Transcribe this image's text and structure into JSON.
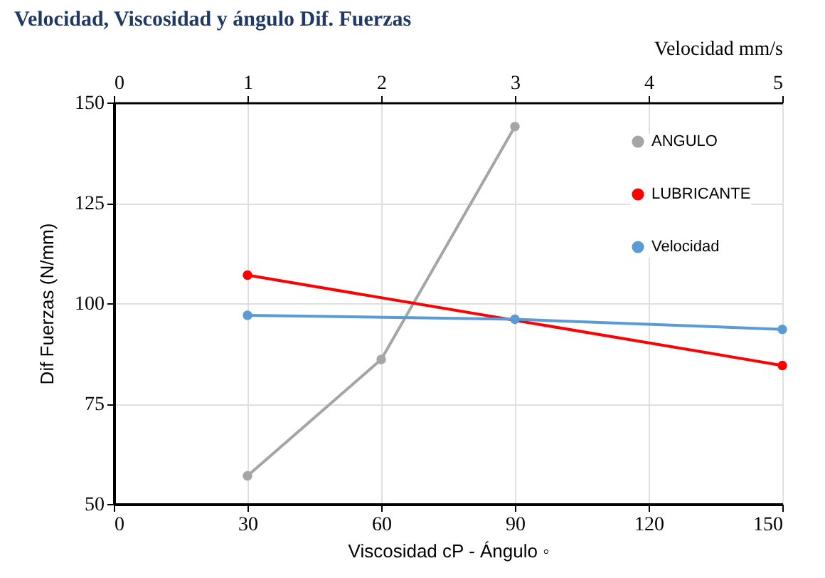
{
  "chart_data": {
    "type": "line",
    "title": "Velocidad, Viscosidad y ángulo Dif. Fuerzas",
    "xlabel": "Viscosidad cP - Ángulo ◦",
    "ylabel": "Dif Fuerzas (N/mm)",
    "x2label": "Velocidad mm/s",
    "xlim": [
      0,
      150
    ],
    "xticks": [
      0,
      30,
      60,
      90,
      120,
      150
    ],
    "x2lim": [
      0,
      5
    ],
    "x2ticks": [
      0,
      1,
      2,
      3,
      4,
      5
    ],
    "ylim": [
      50,
      150
    ],
    "yticks": [
      50,
      75,
      100,
      125,
      150
    ],
    "series": [
      {
        "name": "ANGULO",
        "color": "#a5a5a5",
        "x": [
          30,
          60,
          90
        ],
        "values": [
          57,
          86,
          144
        ]
      },
      {
        "name": "LUBRICANTE",
        "color": "#ff0000",
        "x": [
          30,
          150
        ],
        "values": [
          107,
          84.5
        ]
      },
      {
        "name": "Velocidad",
        "color": "#5b9bd5",
        "axis": "x2",
        "x": [
          1,
          3,
          5
        ],
        "values": [
          97,
          96,
          93.5
        ]
      }
    ],
    "grid": true,
    "legend": "top right",
    "marker": "circle",
    "line_style": "solid"
  }
}
